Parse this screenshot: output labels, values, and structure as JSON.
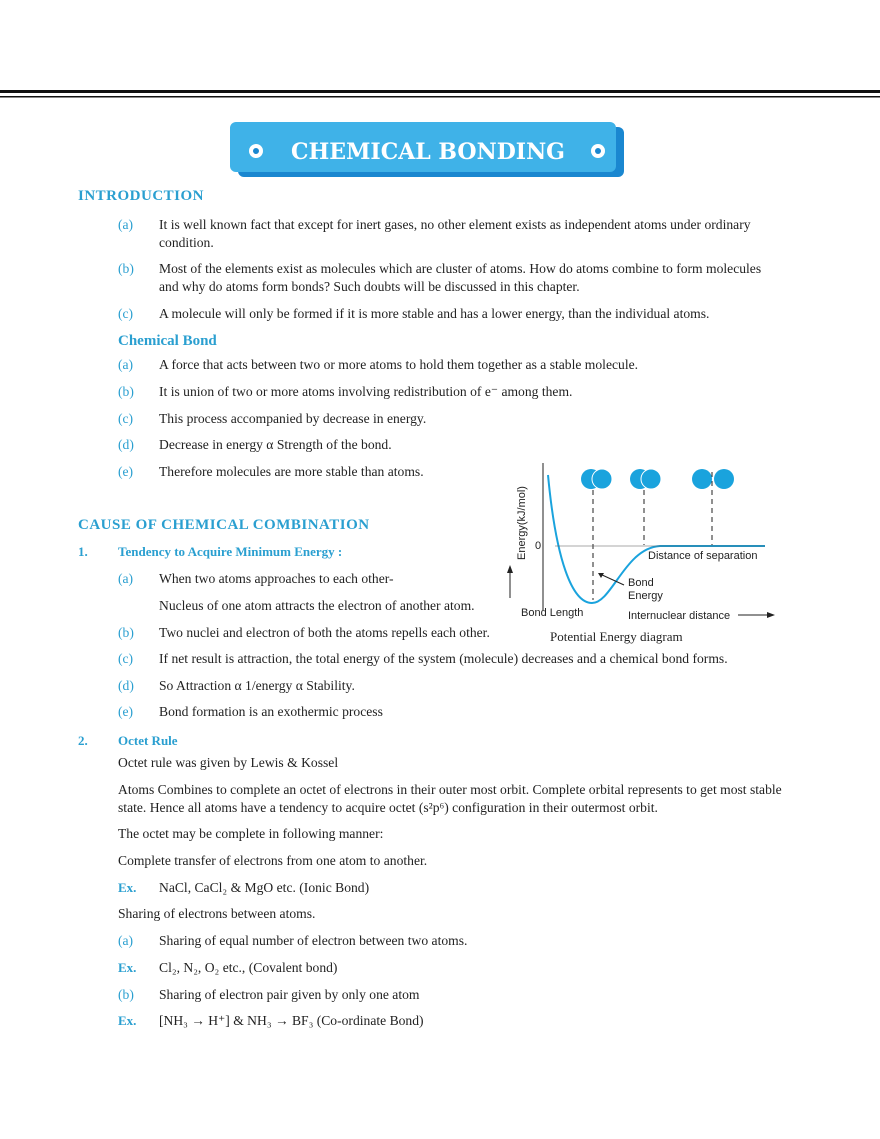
{
  "title": "CHEMICAL BONDING",
  "introduction": {
    "heading": "INTRODUCTION",
    "items": [
      {
        "label": "(a)",
        "text": "It is well known fact that except for inert gases, no other element exists as independent atoms under ordinary condition."
      },
      {
        "label": "(b)",
        "text": "Most of the elements exist as molecules which are cluster of atoms. How do atoms combine to form molecules and why do atoms form bonds? Such doubts will be discussed in this chapter."
      },
      {
        "label": "(c)",
        "text": "A  molecule will only be formed if it is more stable and has a lower energy, than the individual atoms."
      }
    ]
  },
  "chemical_bond": {
    "heading": "Chemical  Bond",
    "items": [
      {
        "label": "(a)",
        "text": "A force that acts between two or more atoms to hold them together as a stable molecule."
      },
      {
        "label": "(b)",
        "text": "It is union of two or more atoms involving redistribution of e⁻ among them."
      },
      {
        "label": "(c)",
        "text": "This process accompanied by decrease in energy."
      },
      {
        "label": "(d)",
        "text": "Decrease in energy α Strength of the bond."
      },
      {
        "label": "(e)",
        "text": "Therefore molecules are more stable than atoms."
      }
    ]
  },
  "cause": {
    "heading": "CAUSE  OF  CHEMICAL  COMBINATION",
    "point1": {
      "number": "1.",
      "title": "Tendency to Acquire Minimum Energy :",
      "items": [
        {
          "label": "(a)",
          "text": "When two atoms approaches to each other-",
          "continuation": "Nucleus of one atom attracts the electron of another atom."
        },
        {
          "label": "(b)",
          "text": "Two nuclei and electron of both the atoms repells each other."
        },
        {
          "label": "(c)",
          "text": "If net result is attraction, the total energy of the system (molecule) decreases and a chemical bond forms."
        },
        {
          "label": "(d)",
          "text": "So Attraction α  1/energy α  Stability."
        },
        {
          "label": "(e)",
          "text": "Bond formation is an exothermic process"
        }
      ]
    },
    "point2": {
      "number": "2.",
      "title": "Octet Rule",
      "lines": [
        "Octet rule was given by Lewis & Kossel",
        "Atoms Combines to complete an octet of electrons in their outer most orbit. Complete orbital represents to get most stable state. Hence all atoms have a tendency to acquire octet (s²p⁶) configuration in their outermost orbit.",
        "The octet may be complete in following manner:",
        "Complete transfer of electrons from one atom to another."
      ],
      "ex1": {
        "label": "Ex.",
        "text": "NaCl, CaCl₂ & MgO etc. (Ionic Bond)"
      },
      "sharing": "Sharing of electrons between atoms.",
      "a": {
        "label": "(a)",
        "text": "Sharing of equal number of electron between two atoms."
      },
      "ex2": {
        "label": "Ex.",
        "text": "Cl₂, N₂, O₂ etc., (Covalent bond)"
      },
      "b": {
        "label": "(b)",
        "text": "Sharing of electron pair given by only one atom"
      },
      "ex3": {
        "label": "Ex.",
        "text": "[NH₃ → H⁺] & NH₃ → BF₃ (Co-ordinate Bond)"
      }
    }
  },
  "diagram": {
    "y_label": "Energy(kJ/mol)",
    "zero": "0",
    "distance": "Distance of separation",
    "bond_energy_1": "Bond",
    "bond_energy_2": "Energy",
    "bond_length": "Bond Length",
    "x_label": "Internuclear distance",
    "caption": "Potential Energy diagram"
  }
}
